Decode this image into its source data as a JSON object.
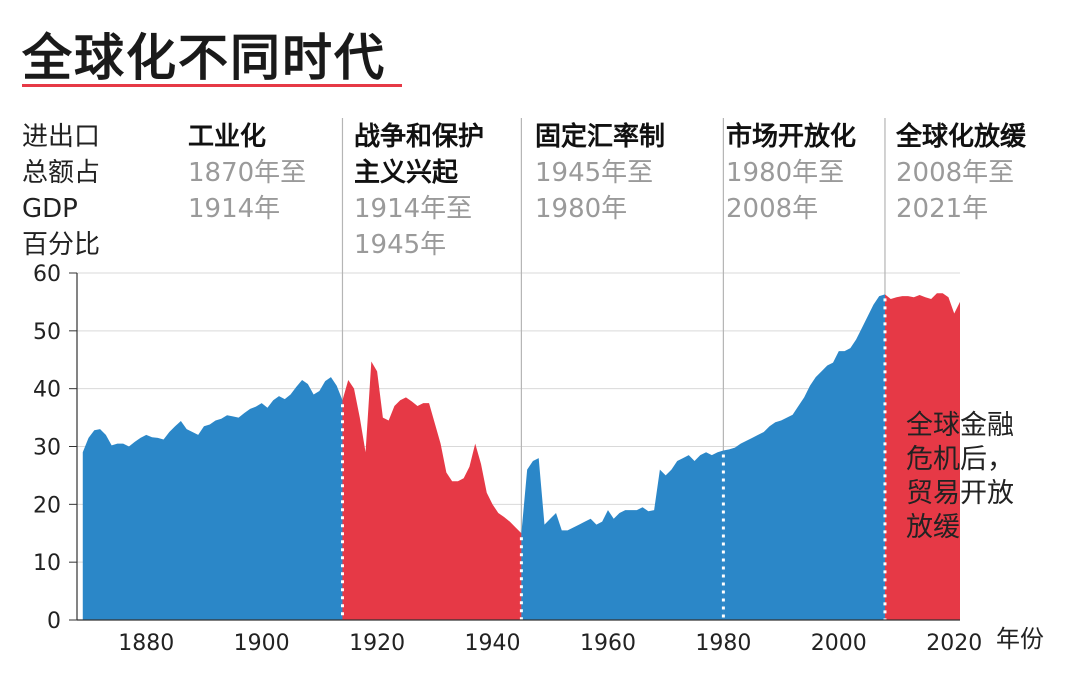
{
  "title": "全球化不同时代",
  "colors": {
    "blue": "#2b87c8",
    "red": "#e63946",
    "grid": "#d9d9d9",
    "divider": "#b5b5b5"
  },
  "chart_data": {
    "type": "area",
    "title": "全球化不同时代",
    "ylabel_lines": [
      "进出口",
      "总额占",
      "GDP",
      "百分比"
    ],
    "xlabel": "年份",
    "xlim": [
      1868,
      2021
    ],
    "ylim": [
      0,
      60
    ],
    "xticks": [
      1880,
      1900,
      1920,
      1940,
      1960,
      1980,
      2000,
      2020
    ],
    "yticks": [
      0,
      10,
      20,
      30,
      40,
      50,
      60
    ],
    "grid": true,
    "eras": [
      {
        "name": "工业化",
        "years": [
          "1870年至",
          "1914年"
        ],
        "start": 1868,
        "end": 1914,
        "color": "blue"
      },
      {
        "name": "战争和保护",
        "name2": "主义兴起",
        "years": [
          "1914年至",
          "1945年"
        ],
        "start": 1914,
        "end": 1945,
        "color": "red"
      },
      {
        "name": "固定汇率制",
        "years": [
          "1945年至",
          "1980年"
        ],
        "start": 1945,
        "end": 1980,
        "color": "blue"
      },
      {
        "name": "市场开放化",
        "years": [
          "1980年至",
          "2008年"
        ],
        "start": 1980,
        "end": 2008,
        "color": "blue"
      },
      {
        "name": "全球化放缓",
        "years": [
          "2008年至",
          "2021年"
        ],
        "start": 2008,
        "end": 2021,
        "color": "red"
      }
    ],
    "annotation": [
      "全球金融",
      "危机后，",
      "贸易开放",
      "放缓"
    ],
    "series": [
      {
        "x": [
          1869,
          1870,
          1871,
          1872,
          1873,
          1874,
          1875,
          1876,
          1877,
          1878,
          1879,
          1880,
          1881,
          1882,
          1883,
          1884,
          1885,
          1886,
          1887,
          1888,
          1889,
          1890,
          1891,
          1892,
          1893,
          1894,
          1895,
          1896,
          1897,
          1898,
          1899,
          1900,
          1901,
          1902,
          1903,
          1904,
          1905,
          1906,
          1907,
          1908,
          1909,
          1910,
          1911,
          1912,
          1913,
          1914
        ],
        "y": [
          29,
          31.5,
          32.8,
          33,
          32,
          30.2,
          30.5,
          30.5,
          30,
          30.8,
          31.5,
          32,
          31.6,
          31.5,
          31.2,
          32.5,
          33.5,
          34.4,
          33,
          32.5,
          32,
          33.5,
          33.8,
          34.5,
          34.8,
          35.4,
          35.2,
          35,
          35.8,
          36.5,
          36.9,
          37.5,
          36.7,
          38,
          38.7,
          38.2,
          39,
          40.3,
          41.5,
          40.8,
          39,
          39.6,
          41.3,
          42,
          40.5,
          38
        ]
      },
      {
        "x": [
          1914,
          1915,
          1916,
          1917,
          1918,
          1919,
          1920,
          1921,
          1922,
          1923,
          1924,
          1925,
          1926,
          1927,
          1928,
          1929,
          1930,
          1931,
          1932,
          1933,
          1934,
          1935,
          1936,
          1937,
          1938,
          1939,
          1940,
          1941,
          1942,
          1943,
          1944,
          1945
        ],
        "y": [
          38,
          41.5,
          40,
          35,
          29,
          44.7,
          43,
          35,
          34.5,
          37,
          38,
          38.5,
          37.8,
          37,
          37.5,
          37.5,
          34,
          30.5,
          25.5,
          24,
          24,
          24.5,
          26.5,
          30.5,
          27,
          22,
          20,
          18.5,
          17.8,
          17,
          16,
          15
        ]
      },
      {
        "x": [
          1945,
          1946,
          1947,
          1948,
          1949,
          1950,
          1951,
          1952,
          1953,
          1954,
          1955,
          1956,
          1957,
          1958,
          1959,
          1960,
          1961,
          1962,
          1963,
          1964,
          1965,
          1966,
          1967,
          1968,
          1969,
          1970,
          1971,
          1972,
          1973,
          1974,
          1975,
          1976,
          1977,
          1978,
          1979,
          1980
        ],
        "y": [
          15,
          26,
          27.5,
          28,
          16.5,
          17.5,
          18.5,
          15.5,
          15.5,
          16,
          16.5,
          17,
          17.5,
          16.5,
          17,
          19,
          17.5,
          18.5,
          19,
          19,
          19,
          19.5,
          18.8,
          19,
          26,
          25,
          26,
          27.5,
          28,
          28.5,
          27.5,
          28.5,
          29,
          28.5,
          29,
          29.3
        ]
      },
      {
        "x": [
          1980,
          1981,
          1982,
          1983,
          1984,
          1985,
          1986,
          1987,
          1988,
          1989,
          1990,
          1991,
          1992,
          1993,
          1994,
          1995,
          1996,
          1997,
          1998,
          1999,
          2000,
          2001,
          2002,
          2003,
          2004,
          2005,
          2006,
          2007,
          2008
        ],
        "y": [
          29.3,
          29.5,
          29.8,
          30.5,
          31,
          31.5,
          32,
          32.5,
          33.5,
          34.2,
          34.5,
          35,
          35.5,
          37,
          38.5,
          40.5,
          42,
          43,
          44,
          44.5,
          46.5,
          46.5,
          47,
          48.5,
          50.5,
          52.5,
          54.5,
          56,
          56.3
        ]
      },
      {
        "x": [
          2008,
          2009,
          2010,
          2011,
          2012,
          2013,
          2014,
          2015,
          2016,
          2017,
          2018,
          2019,
          2020,
          2021
        ],
        "y": [
          56.3,
          55.5,
          55.8,
          56,
          56,
          55.8,
          56.2,
          55.8,
          55.5,
          56.5,
          56.5,
          55.8,
          53,
          55
        ]
      }
    ]
  }
}
